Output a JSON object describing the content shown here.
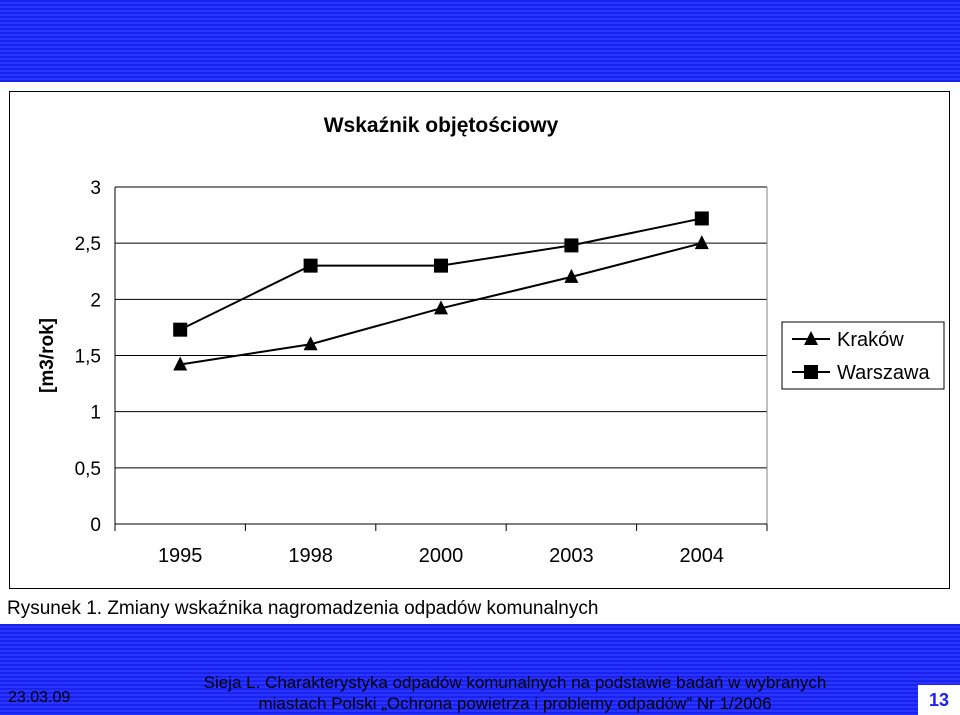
{
  "chart_data": {
    "type": "line",
    "title": "Wskaźnik objętościowy",
    "xlabel": "",
    "ylabel": "[m3/rok]",
    "categories": [
      "1995",
      "1998",
      "2000",
      "2003",
      "2004"
    ],
    "ylim": [
      0,
      3
    ],
    "yticks": [
      "0",
      "0,5",
      "1",
      "1,5",
      "2",
      "2,5",
      "3"
    ],
    "ytick_values": [
      0,
      0.5,
      1,
      1.5,
      2,
      2.5,
      3
    ],
    "grid": true,
    "legend_position": "right",
    "series": [
      {
        "name": "Kraków",
        "marker": "triangle",
        "color": "#000000",
        "values": [
          1.42,
          1.6,
          1.92,
          2.2,
          2.5
        ]
      },
      {
        "name": "Warszawa",
        "marker": "square",
        "color": "#000000",
        "values": [
          1.73,
          2.3,
          2.3,
          2.48,
          2.72
        ]
      }
    ]
  },
  "caption": "Rysunek 1. Zmiany wskaźnika nagromadzenia odpadów komunalnych",
  "footer": {
    "date": "23.03.09",
    "reference_line1": "Sieja L. Charakterystyka odpadów komunalnych na podstawie badań w wybranych",
    "reference_line2": "miastach Polski „Ochrona powietrza i problemy odpadów” Nr 1/2006",
    "page": "13"
  },
  "colors": {
    "band": "#1a22f0",
    "page_number": "#1a22f0"
  }
}
